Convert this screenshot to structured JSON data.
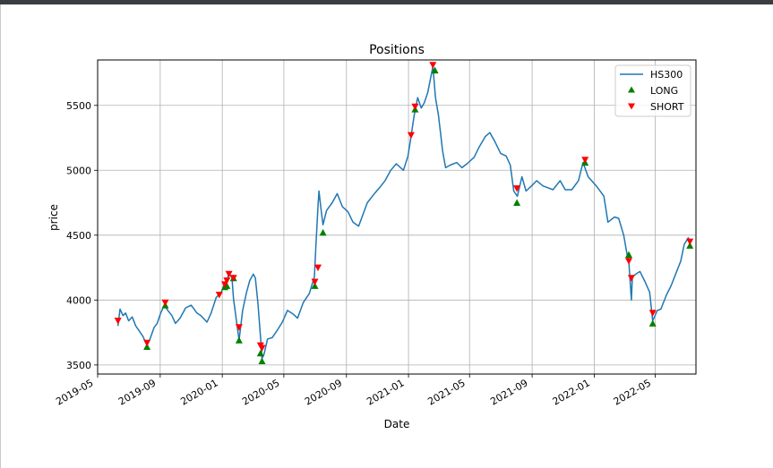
{
  "chart_data": {
    "type": "line",
    "title": "Positions",
    "xlabel": "Date",
    "ylabel": "price",
    "xlim": [
      "2019-05-01",
      "2022-07-20"
    ],
    "ylim": [
      3430,
      5850
    ],
    "grid": true,
    "legend_position": "top-right",
    "x_ticks": [
      "2019-05-01",
      "2019-09-01",
      "2020-01-01",
      "2020-05-01",
      "2020-09-01",
      "2021-01-01",
      "2021-05-01",
      "2021-09-01",
      "2022-01-01",
      "2022-05-01"
    ],
    "x_tick_labels": [
      "2019-05",
      "2019-09",
      "2020-01",
      "2020-05",
      "2020-09",
      "2021-01",
      "2021-05",
      "2021-09",
      "2022-01",
      "2022-05"
    ],
    "y_ticks": [
      3500,
      4000,
      4500,
      5000,
      5500
    ],
    "y_tick_labels": [
      "3500",
      "4000",
      "4500",
      "5000",
      "5500"
    ],
    "series": [
      {
        "name": "HS300",
        "color": "#1f77b4",
        "points": [
          [
            "2019-06-10",
            3800
          ],
          [
            "2019-06-14",
            3930
          ],
          [
            "2019-06-20",
            3880
          ],
          [
            "2019-06-25",
            3900
          ],
          [
            "2019-07-01",
            3840
          ],
          [
            "2019-07-08",
            3870
          ],
          [
            "2019-07-15",
            3800
          ],
          [
            "2019-07-22",
            3760
          ],
          [
            "2019-07-29",
            3720
          ],
          [
            "2019-08-06",
            3650
          ],
          [
            "2019-08-12",
            3700
          ],
          [
            "2019-08-20",
            3790
          ],
          [
            "2019-08-26",
            3820
          ],
          [
            "2019-09-02",
            3900
          ],
          [
            "2019-09-09",
            3960
          ],
          [
            "2019-09-16",
            3920
          ],
          [
            "2019-09-24",
            3880
          ],
          [
            "2019-10-01",
            3820
          ],
          [
            "2019-10-10",
            3860
          ],
          [
            "2019-10-21",
            3940
          ],
          [
            "2019-11-01",
            3960
          ],
          [
            "2019-11-12",
            3900
          ],
          [
            "2019-11-20",
            3880
          ],
          [
            "2019-12-02",
            3830
          ],
          [
            "2019-12-10",
            3900
          ],
          [
            "2019-12-20",
            4020
          ],
          [
            "2019-12-30",
            4060
          ],
          [
            "2020-01-06",
            4130
          ],
          [
            "2020-01-10",
            4150
          ],
          [
            "2020-01-14",
            4210
          ],
          [
            "2020-01-20",
            4170
          ],
          [
            "2020-01-23",
            4010
          ],
          [
            "2020-02-03",
            3690
          ],
          [
            "2020-02-10",
            3920
          ],
          [
            "2020-02-17",
            4050
          ],
          [
            "2020-02-24",
            4150
          ],
          [
            "2020-03-02",
            4200
          ],
          [
            "2020-03-06",
            4170
          ],
          [
            "2020-03-11",
            3980
          ],
          [
            "2020-03-16",
            3720
          ],
          [
            "2020-03-19",
            3550
          ],
          [
            "2020-03-23",
            3580
          ],
          [
            "2020-03-30",
            3700
          ],
          [
            "2020-04-08",
            3710
          ],
          [
            "2020-04-17",
            3760
          ],
          [
            "2020-04-28",
            3830
          ],
          [
            "2020-05-08",
            3920
          ],
          [
            "2020-05-20",
            3890
          ],
          [
            "2020-05-28",
            3860
          ],
          [
            "2020-06-08",
            3980
          ],
          [
            "2020-06-20",
            4050
          ],
          [
            "2020-06-30",
            4180
          ],
          [
            "2020-07-03",
            4420
          ],
          [
            "2020-07-07",
            4720
          ],
          [
            "2020-07-09",
            4840
          ],
          [
            "2020-07-13",
            4700
          ],
          [
            "2020-07-17",
            4580
          ],
          [
            "2020-07-24",
            4690
          ],
          [
            "2020-08-04",
            4750
          ],
          [
            "2020-08-14",
            4820
          ],
          [
            "2020-08-24",
            4720
          ],
          [
            "2020-09-04",
            4680
          ],
          [
            "2020-09-14",
            4600
          ],
          [
            "2020-09-25",
            4570
          ],
          [
            "2020-10-12",
            4750
          ],
          [
            "2020-10-26",
            4820
          ],
          [
            "2020-11-06",
            4870
          ],
          [
            "2020-11-16",
            4920
          ],
          [
            "2020-11-27",
            5000
          ],
          [
            "2020-12-08",
            5050
          ],
          [
            "2020-12-22",
            5000
          ],
          [
            "2020-12-31",
            5110
          ],
          [
            "2021-01-06",
            5260
          ],
          [
            "2021-01-12",
            5420
          ],
          [
            "2021-01-19",
            5560
          ],
          [
            "2021-01-26",
            5480
          ],
          [
            "2021-02-01",
            5520
          ],
          [
            "2021-02-08",
            5600
          ],
          [
            "2021-02-18",
            5800
          ],
          [
            "2021-02-23",
            5560
          ],
          [
            "2021-03-01",
            5420
          ],
          [
            "2021-03-09",
            5150
          ],
          [
            "2021-03-15",
            5020
          ],
          [
            "2021-03-24",
            5040
          ],
          [
            "2021-04-06",
            5060
          ],
          [
            "2021-04-16",
            5020
          ],
          [
            "2021-04-26",
            5050
          ],
          [
            "2021-05-10",
            5100
          ],
          [
            "2021-05-20",
            5180
          ],
          [
            "2021-06-01",
            5260
          ],
          [
            "2021-06-10",
            5290
          ],
          [
            "2021-06-20",
            5220
          ],
          [
            "2021-07-01",
            5130
          ],
          [
            "2021-07-12",
            5110
          ],
          [
            "2021-07-20",
            5040
          ],
          [
            "2021-07-27",
            4840
          ],
          [
            "2021-08-03",
            4800
          ],
          [
            "2021-08-12",
            4950
          ],
          [
            "2021-08-20",
            4840
          ],
          [
            "2021-08-31",
            4880
          ],
          [
            "2021-09-10",
            4920
          ],
          [
            "2021-09-22",
            4880
          ],
          [
            "2021-10-12",
            4850
          ],
          [
            "2021-10-26",
            4920
          ],
          [
            "2021-11-05",
            4850
          ],
          [
            "2021-11-18",
            4850
          ],
          [
            "2021-12-01",
            4920
          ],
          [
            "2021-12-10",
            5060
          ],
          [
            "2021-12-20",
            4950
          ],
          [
            "2022-01-05",
            4880
          ],
          [
            "2022-01-20",
            4800
          ],
          [
            "2022-01-28",
            4600
          ],
          [
            "2022-02-10",
            4640
          ],
          [
            "2022-02-18",
            4630
          ],
          [
            "2022-02-28",
            4500
          ],
          [
            "2022-03-08",
            4320
          ],
          [
            "2022-03-10",
            4300
          ],
          [
            "2022-03-15",
            4000
          ],
          [
            "2022-03-17",
            4180
          ],
          [
            "2022-03-24",
            4200
          ],
          [
            "2022-04-01",
            4220
          ],
          [
            "2022-04-11",
            4140
          ],
          [
            "2022-04-20",
            4060
          ],
          [
            "2022-04-26",
            3840
          ],
          [
            "2022-05-05",
            3920
          ],
          [
            "2022-05-12",
            3930
          ],
          [
            "2022-05-23",
            4040
          ],
          [
            "2022-06-01",
            4110
          ],
          [
            "2022-06-10",
            4200
          ],
          [
            "2022-06-20",
            4300
          ],
          [
            "2022-06-27",
            4430
          ],
          [
            "2022-07-05",
            4480
          ],
          [
            "2022-07-08",
            4430
          ]
        ]
      },
      {
        "name": "LONG",
        "color": "#008000",
        "marker": "triangle-up",
        "points": [
          [
            "2019-08-06",
            3640
          ],
          [
            "2019-09-11",
            3960
          ],
          [
            "2020-01-06",
            4100
          ],
          [
            "2020-01-10",
            4110
          ],
          [
            "2020-01-23",
            4170
          ],
          [
            "2020-02-03",
            3690
          ],
          [
            "2020-03-16",
            3590
          ],
          [
            "2020-03-19",
            3530
          ],
          [
            "2020-07-01",
            4110
          ],
          [
            "2020-07-17",
            4520
          ],
          [
            "2021-01-14",
            5470
          ],
          [
            "2021-02-22",
            5770
          ],
          [
            "2021-08-02",
            4750
          ],
          [
            "2021-12-14",
            5060
          ],
          [
            "2022-03-10",
            4350
          ],
          [
            "2022-04-26",
            3820
          ],
          [
            "2022-07-08",
            4420
          ]
        ]
      },
      {
        "name": "SHORT",
        "color": "#ff0000",
        "marker": "triangle-down",
        "points": [
          [
            "2019-06-10",
            3840
          ],
          [
            "2019-08-06",
            3670
          ],
          [
            "2019-09-11",
            3980
          ],
          [
            "2019-12-26",
            4040
          ],
          [
            "2020-01-06",
            4120
          ],
          [
            "2020-01-10",
            4150
          ],
          [
            "2020-01-14",
            4200
          ],
          [
            "2020-01-23",
            4170
          ],
          [
            "2020-02-03",
            3790
          ],
          [
            "2020-03-16",
            3650
          ],
          [
            "2020-03-19",
            3630
          ],
          [
            "2020-07-01",
            4140
          ],
          [
            "2020-07-07",
            4250
          ],
          [
            "2021-01-06",
            5270
          ],
          [
            "2021-01-14",
            5490
          ],
          [
            "2021-02-18",
            5810
          ],
          [
            "2021-08-02",
            4860
          ],
          [
            "2021-12-14",
            5080
          ],
          [
            "2022-03-10",
            4300
          ],
          [
            "2022-03-15",
            4170
          ],
          [
            "2022-04-26",
            3900
          ],
          [
            "2022-07-08",
            4450
          ]
        ]
      }
    ]
  }
}
